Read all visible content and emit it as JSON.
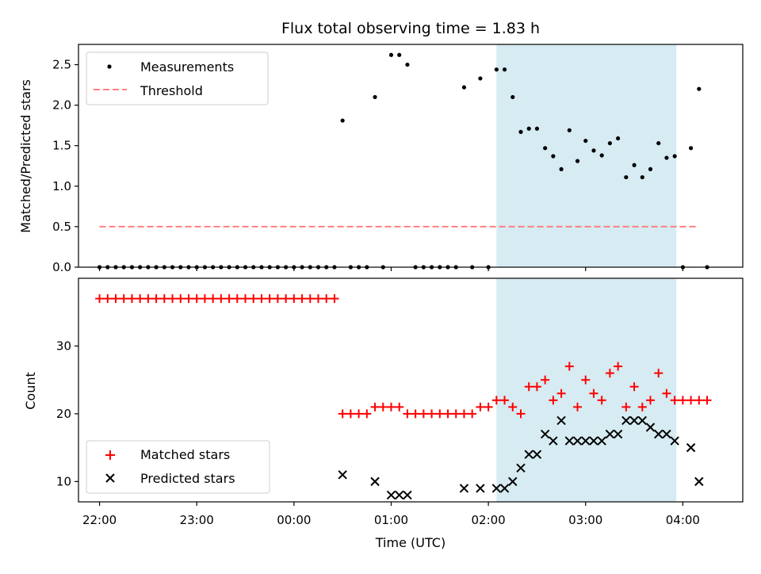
{
  "chart_data": [
    {
      "type": "scatter",
      "panel": "top",
      "title": "Flux total observing time = 1.83 h",
      "xlabel": "",
      "ylabel": "Matched/Predicted stars",
      "xlim": [
        "21:47",
        "04:37"
      ],
      "ylim": [
        0,
        2.75
      ],
      "yticks": [
        0.0,
        0.5,
        1.0,
        1.5,
        2.0,
        2.5
      ],
      "ytick_labels": [
        "0.0",
        "0.5",
        "1.0",
        "1.5",
        "2.0",
        "2.5"
      ],
      "shaded_region": {
        "start": "02:05",
        "end": "03:56",
        "color": "#add8e6"
      },
      "legend": {
        "position": "top-left",
        "entries": [
          "Measurements",
          "Threshold"
        ]
      },
      "series": [
        {
          "name": "Measurements",
          "marker": "dot",
          "color": "#000000",
          "points": [
            {
              "x": "22:00",
              "y": 0
            },
            {
              "x": "22:05",
              "y": 0
            },
            {
              "x": "22:10",
              "y": 0
            },
            {
              "x": "22:15",
              "y": 0
            },
            {
              "x": "22:20",
              "y": 0
            },
            {
              "x": "22:25",
              "y": 0
            },
            {
              "x": "22:30",
              "y": 0
            },
            {
              "x": "22:35",
              "y": 0
            },
            {
              "x": "22:40",
              "y": 0
            },
            {
              "x": "22:45",
              "y": 0
            },
            {
              "x": "22:50",
              "y": 0
            },
            {
              "x": "22:55",
              "y": 0
            },
            {
              "x": "23:00",
              "y": 0
            },
            {
              "x": "23:05",
              "y": 0
            },
            {
              "x": "23:10",
              "y": 0
            },
            {
              "x": "23:15",
              "y": 0
            },
            {
              "x": "23:20",
              "y": 0
            },
            {
              "x": "23:25",
              "y": 0
            },
            {
              "x": "23:30",
              "y": 0
            },
            {
              "x": "23:35",
              "y": 0
            },
            {
              "x": "23:40",
              "y": 0
            },
            {
              "x": "23:45",
              "y": 0
            },
            {
              "x": "23:50",
              "y": 0
            },
            {
              "x": "23:55",
              "y": 0
            },
            {
              "x": "00:00",
              "y": 0
            },
            {
              "x": "00:05",
              "y": 0
            },
            {
              "x": "00:10",
              "y": 0
            },
            {
              "x": "00:15",
              "y": 0
            },
            {
              "x": "00:20",
              "y": 0
            },
            {
              "x": "00:25",
              "y": 0
            },
            {
              "x": "00:30",
              "y": 1.81
            },
            {
              "x": "00:35",
              "y": 0
            },
            {
              "x": "00:40",
              "y": 0
            },
            {
              "x": "00:45",
              "y": 0
            },
            {
              "x": "00:50",
              "y": 2.1
            },
            {
              "x": "00:55",
              "y": 0
            },
            {
              "x": "01:00",
              "y": 2.62
            },
            {
              "x": "01:05",
              "y": 2.62
            },
            {
              "x": "01:10",
              "y": 2.5
            },
            {
              "x": "01:15",
              "y": 0
            },
            {
              "x": "01:20",
              "y": 0
            },
            {
              "x": "01:25",
              "y": 0
            },
            {
              "x": "01:30",
              "y": 0
            },
            {
              "x": "01:35",
              "y": 0
            },
            {
              "x": "01:40",
              "y": 0
            },
            {
              "x": "01:45",
              "y": 2.22
            },
            {
              "x": "01:50",
              "y": 0
            },
            {
              "x": "01:55",
              "y": 2.33
            },
            {
              "x": "02:00",
              "y": 0
            },
            {
              "x": "02:05",
              "y": 2.44
            },
            {
              "x": "02:10",
              "y": 2.44
            },
            {
              "x": "02:15",
              "y": 2.1
            },
            {
              "x": "02:20",
              "y": 1.67
            },
            {
              "x": "02:25",
              "y": 1.71
            },
            {
              "x": "02:30",
              "y": 1.71
            },
            {
              "x": "02:35",
              "y": 1.47
            },
            {
              "x": "02:40",
              "y": 1.37
            },
            {
              "x": "02:45",
              "y": 1.21
            },
            {
              "x": "02:50",
              "y": 1.69
            },
            {
              "x": "02:55",
              "y": 1.31
            },
            {
              "x": "03:00",
              "y": 1.56
            },
            {
              "x": "03:05",
              "y": 1.44
            },
            {
              "x": "03:10",
              "y": 1.38
            },
            {
              "x": "03:15",
              "y": 1.53
            },
            {
              "x": "03:20",
              "y": 1.59
            },
            {
              "x": "03:25",
              "y": 1.11
            },
            {
              "x": "03:30",
              "y": 1.26
            },
            {
              "x": "03:35",
              "y": 1.11
            },
            {
              "x": "03:40",
              "y": 1.21
            },
            {
              "x": "03:45",
              "y": 1.53
            },
            {
              "x": "03:50",
              "y": 1.35
            },
            {
              "x": "03:55",
              "y": 1.37
            },
            {
              "x": "04:00",
              "y": 0
            },
            {
              "x": "04:05",
              "y": 1.47
            },
            {
              "x": "04:10",
              "y": 2.2
            },
            {
              "x": "04:15",
              "y": 0
            }
          ]
        },
        {
          "name": "Threshold",
          "line_style": "dashed",
          "color": "#ff7f7f",
          "points": [
            {
              "x": "22:00",
              "y": 0.5
            },
            {
              "x": "04:10",
              "y": 0.5
            }
          ]
        }
      ]
    },
    {
      "type": "scatter",
      "panel": "bottom",
      "title": "",
      "xlabel": "Time (UTC)",
      "ylabel": "Count",
      "xlim": [
        "21:47",
        "04:37"
      ],
      "ylim": [
        7,
        40
      ],
      "xticks": [
        "22:00",
        "23:00",
        "00:00",
        "01:00",
        "02:00",
        "03:00",
        "04:00"
      ],
      "yticks": [
        10,
        20,
        30
      ],
      "ytick_labels": [
        "10",
        "20",
        "30"
      ],
      "shaded_region": {
        "start": "02:05",
        "end": "03:56",
        "color": "#add8e6"
      },
      "legend": {
        "position": "bottom-left",
        "entries": [
          "Matched stars",
          "Predicted stars"
        ]
      },
      "series": [
        {
          "name": "Matched stars",
          "marker": "plus",
          "color": "#ff0000",
          "points": [
            {
              "x": "22:00",
              "y": 37
            },
            {
              "x": "22:05",
              "y": 37
            },
            {
              "x": "22:10",
              "y": 37
            },
            {
              "x": "22:15",
              "y": 37
            },
            {
              "x": "22:20",
              "y": 37
            },
            {
              "x": "22:25",
              "y": 37
            },
            {
              "x": "22:30",
              "y": 37
            },
            {
              "x": "22:35",
              "y": 37
            },
            {
              "x": "22:40",
              "y": 37
            },
            {
              "x": "22:45",
              "y": 37
            },
            {
              "x": "22:50",
              "y": 37
            },
            {
              "x": "22:55",
              "y": 37
            },
            {
              "x": "23:00",
              "y": 37
            },
            {
              "x": "23:05",
              "y": 37
            },
            {
              "x": "23:10",
              "y": 37
            },
            {
              "x": "23:15",
              "y": 37
            },
            {
              "x": "23:20",
              "y": 37
            },
            {
              "x": "23:25",
              "y": 37
            },
            {
              "x": "23:30",
              "y": 37
            },
            {
              "x": "23:35",
              "y": 37
            },
            {
              "x": "23:40",
              "y": 37
            },
            {
              "x": "23:45",
              "y": 37
            },
            {
              "x": "23:50",
              "y": 37
            },
            {
              "x": "23:55",
              "y": 37
            },
            {
              "x": "00:00",
              "y": 37
            },
            {
              "x": "00:05",
              "y": 37
            },
            {
              "x": "00:10",
              "y": 37
            },
            {
              "x": "00:15",
              "y": 37
            },
            {
              "x": "00:20",
              "y": 37
            },
            {
              "x": "00:25",
              "y": 37
            },
            {
              "x": "00:30",
              "y": 20
            },
            {
              "x": "00:35",
              "y": 20
            },
            {
              "x": "00:40",
              "y": 20
            },
            {
              "x": "00:45",
              "y": 20
            },
            {
              "x": "00:50",
              "y": 21
            },
            {
              "x": "00:55",
              "y": 21
            },
            {
              "x": "01:00",
              "y": 21
            },
            {
              "x": "01:05",
              "y": 21
            },
            {
              "x": "01:10",
              "y": 20
            },
            {
              "x": "01:15",
              "y": 20
            },
            {
              "x": "01:20",
              "y": 20
            },
            {
              "x": "01:25",
              "y": 20
            },
            {
              "x": "01:30",
              "y": 20
            },
            {
              "x": "01:35",
              "y": 20
            },
            {
              "x": "01:40",
              "y": 20
            },
            {
              "x": "01:45",
              "y": 20
            },
            {
              "x": "01:50",
              "y": 20
            },
            {
              "x": "01:55",
              "y": 21
            },
            {
              "x": "02:00",
              "y": 21
            },
            {
              "x": "02:05",
              "y": 22
            },
            {
              "x": "02:10",
              "y": 22
            },
            {
              "x": "02:15",
              "y": 21
            },
            {
              "x": "02:20",
              "y": 20
            },
            {
              "x": "02:25",
              "y": 24
            },
            {
              "x": "02:30",
              "y": 24
            },
            {
              "x": "02:35",
              "y": 25
            },
            {
              "x": "02:40",
              "y": 22
            },
            {
              "x": "02:45",
              "y": 23
            },
            {
              "x": "02:50",
              "y": 27
            },
            {
              "x": "02:55",
              "y": 21
            },
            {
              "x": "03:00",
              "y": 25
            },
            {
              "x": "03:05",
              "y": 23
            },
            {
              "x": "03:10",
              "y": 22
            },
            {
              "x": "03:15",
              "y": 26
            },
            {
              "x": "03:20",
              "y": 27
            },
            {
              "x": "03:25",
              "y": 21
            },
            {
              "x": "03:30",
              "y": 24
            },
            {
              "x": "03:35",
              "y": 21
            },
            {
              "x": "03:40",
              "y": 22
            },
            {
              "x": "03:45",
              "y": 26
            },
            {
              "x": "03:50",
              "y": 23
            },
            {
              "x": "03:55",
              "y": 22
            },
            {
              "x": "04:00",
              "y": 22
            },
            {
              "x": "04:05",
              "y": 22
            },
            {
              "x": "04:10",
              "y": 22
            },
            {
              "x": "04:15",
              "y": 22
            }
          ]
        },
        {
          "name": "Predicted stars",
          "marker": "x",
          "color": "#000000",
          "points": [
            {
              "x": "00:30",
              "y": 11
            },
            {
              "x": "00:50",
              "y": 10
            },
            {
              "x": "01:00",
              "y": 8
            },
            {
              "x": "01:05",
              "y": 8
            },
            {
              "x": "01:10",
              "y": 8
            },
            {
              "x": "01:45",
              "y": 9
            },
            {
              "x": "01:55",
              "y": 9
            },
            {
              "x": "02:05",
              "y": 9
            },
            {
              "x": "02:10",
              "y": 9
            },
            {
              "x": "02:15",
              "y": 10
            },
            {
              "x": "02:20",
              "y": 12
            },
            {
              "x": "02:25",
              "y": 14
            },
            {
              "x": "02:30",
              "y": 14
            },
            {
              "x": "02:35",
              "y": 17
            },
            {
              "x": "02:40",
              "y": 16
            },
            {
              "x": "02:45",
              "y": 19
            },
            {
              "x": "02:50",
              "y": 16
            },
            {
              "x": "02:55",
              "y": 16
            },
            {
              "x": "03:00",
              "y": 16
            },
            {
              "x": "03:05",
              "y": 16
            },
            {
              "x": "03:10",
              "y": 16
            },
            {
              "x": "03:15",
              "y": 17
            },
            {
              "x": "03:20",
              "y": 17
            },
            {
              "x": "03:25",
              "y": 19
            },
            {
              "x": "03:30",
              "y": 19
            },
            {
              "x": "03:35",
              "y": 19
            },
            {
              "x": "03:40",
              "y": 18
            },
            {
              "x": "03:45",
              "y": 17
            },
            {
              "x": "03:50",
              "y": 17
            },
            {
              "x": "03:55",
              "y": 16
            },
            {
              "x": "04:05",
              "y": 15
            },
            {
              "x": "04:10",
              "y": 10
            }
          ]
        }
      ]
    }
  ]
}
